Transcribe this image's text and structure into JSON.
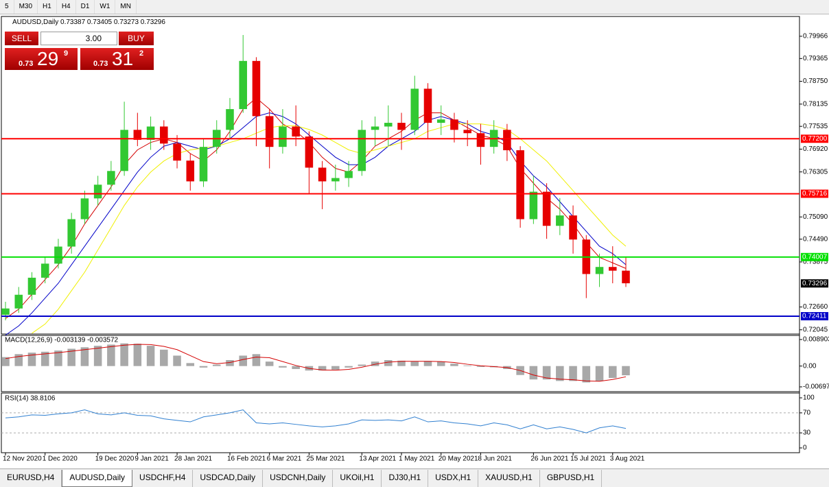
{
  "toolbar": {
    "timeframes": [
      "5",
      "M30",
      "H1",
      "H4",
      "D1",
      "W1",
      "MN"
    ]
  },
  "chart_header": "AUDUSD,Daily  0.73387 0.73405 0.73273 0.73296",
  "trade_panel": {
    "sell": "SELL",
    "buy": "BUY",
    "lot": "3.00",
    "sell_price": {
      "big": "0.73",
      "main": "29",
      "small": "9"
    },
    "buy_price": {
      "big": "0.73",
      "main": "31",
      "small": "2"
    }
  },
  "chart_data": [
    {
      "type": "candlestick",
      "up_color": "#32c832",
      "down_color": "#e60000",
      "ylim": [
        0.7193,
        0.805
      ],
      "yticks": [
        0.79966,
        0.79365,
        {
          "value": 0.7875,
          "label": "0.78750"
        },
        0.78135,
        0.77535,
        {
          "value": 0.7692,
          "label": "0.76920"
        },
        0.76305,
        {
          "value": 0.7509,
          "label": "0.75090"
        },
        {
          "value": 0.7449,
          "label": "0.74490"
        },
        0.73875,
        {
          "value": 0.7266,
          "label": "0.72660"
        },
        0.72045
      ],
      "categories": [
        "12 Nov 2020",
        null,
        null,
        "1 Dec 2020",
        null,
        null,
        null,
        "19 Dec 2020",
        null,
        null,
        "9 Jan 2021",
        null,
        null,
        "28 Jan 2021",
        null,
        null,
        null,
        "16 Feb 2021",
        null,
        null,
        "6 Mar 2021",
        null,
        null,
        "25 Mar 2021",
        null,
        null,
        null,
        "13 Apr 2021",
        null,
        null,
        "1 May 2021",
        null,
        null,
        "20 May 2021",
        null,
        null,
        "8 Jun 2021",
        null,
        null,
        null,
        "26 Jun 2021",
        null,
        null,
        "15 Jul 2021",
        null,
        null,
        "3 Aug 2021",
        null
      ],
      "ohlc": [
        [
          0.7245,
          0.728,
          0.723,
          0.7262
        ],
        [
          0.7262,
          0.732,
          0.725,
          0.7299
        ],
        [
          0.7299,
          0.736,
          0.7285,
          0.7345
        ],
        [
          0.7345,
          0.74,
          0.733,
          0.7383
        ],
        [
          0.7383,
          0.745,
          0.737,
          0.7429
        ],
        [
          0.7429,
          0.752,
          0.741,
          0.7503
        ],
        [
          0.7503,
          0.758,
          0.749,
          0.7559
        ],
        [
          0.7559,
          0.762,
          0.754,
          0.7596
        ],
        [
          0.7596,
          0.766,
          0.758,
          0.7633
        ],
        [
          0.7633,
          0.782,
          0.762,
          0.7744
        ],
        [
          0.7744,
          0.779,
          0.77,
          0.7717
        ],
        [
          0.7717,
          0.778,
          0.769,
          0.7753
        ],
        [
          0.7753,
          0.777,
          0.769,
          0.7707
        ],
        [
          0.7707,
          0.773,
          0.764,
          0.7661
        ],
        [
          0.7661,
          0.768,
          0.758,
          0.7605
        ],
        [
          0.7605,
          0.772,
          0.759,
          0.7698
        ],
        [
          0.7698,
          0.777,
          0.768,
          0.7744
        ],
        [
          0.7744,
          0.783,
          0.772,
          0.78
        ],
        [
          0.78,
          0.8,
          0.779,
          0.793
        ],
        [
          0.793,
          0.794,
          0.77,
          0.7781
        ],
        [
          0.7781,
          0.78,
          0.764,
          0.7698
        ],
        [
          0.7698,
          0.78,
          0.768,
          0.7753
        ],
        [
          0.7753,
          0.781,
          0.77,
          0.7726
        ],
        [
          0.7726,
          0.774,
          0.757,
          0.7642
        ],
        [
          0.7642,
          0.766,
          0.753,
          0.7605
        ],
        [
          0.7605,
          0.765,
          0.758,
          0.7614
        ],
        [
          0.7614,
          0.766,
          0.759,
          0.7633
        ],
        [
          0.7633,
          0.777,
          0.762,
          0.7744
        ],
        [
          0.7744,
          0.778,
          0.77,
          0.7753
        ],
        [
          0.7753,
          0.781,
          0.77,
          0.7763
        ],
        [
          0.7763,
          0.779,
          0.769,
          0.7744
        ],
        [
          0.7744,
          0.789,
          0.773,
          0.7855
        ],
        [
          0.7855,
          0.787,
          0.772,
          0.7763
        ],
        [
          0.7763,
          0.781,
          0.773,
          0.7772
        ],
        [
          0.7772,
          0.779,
          0.771,
          0.7744
        ],
        [
          0.7744,
          0.777,
          0.77,
          0.7735
        ],
        [
          0.7735,
          0.776,
          0.765,
          0.7698
        ],
        [
          0.7698,
          0.777,
          0.768,
          0.7744
        ],
        [
          0.7744,
          0.776,
          0.766,
          0.7689
        ],
        [
          0.7689,
          0.77,
          0.748,
          0.7503
        ],
        [
          0.7503,
          0.762,
          0.749,
          0.7577
        ],
        [
          0.7577,
          0.76,
          0.745,
          0.7485
        ],
        [
          0.7485,
          0.756,
          0.746,
          0.7513
        ],
        [
          0.7513,
          0.754,
          0.741,
          0.7448
        ],
        [
          0.7448,
          0.746,
          0.729,
          0.7355
        ],
        [
          0.7355,
          0.741,
          0.732,
          0.7374
        ],
        [
          0.7374,
          0.743,
          0.733,
          0.7364
        ],
        [
          0.7364,
          0.74,
          0.732,
          0.733
        ]
      ],
      "moving_averages": [
        {
          "color": "#d40000",
          "values": [
            0.7235,
            0.726,
            0.73,
            0.734,
            0.738,
            0.743,
            0.749,
            0.754,
            0.759,
            0.765,
            0.769,
            0.771,
            0.772,
            0.771,
            0.768,
            0.766,
            0.769,
            0.774,
            0.78,
            0.783,
            0.78,
            0.776,
            0.774,
            0.771,
            0.767,
            0.764,
            0.763,
            0.766,
            0.77,
            0.772,
            0.774,
            0.777,
            0.779,
            0.779,
            0.777,
            0.775,
            0.773,
            0.772,
            0.77,
            0.764,
            0.76,
            0.756,
            0.753,
            0.749,
            0.744,
            0.74,
            0.7385,
            0.737
          ]
        },
        {
          "color": "#0000c8",
          "values": [
            0.719,
            0.7215,
            0.725,
            0.729,
            0.733,
            0.738,
            0.743,
            0.748,
            0.753,
            0.758,
            0.763,
            0.767,
            0.77,
            0.771,
            0.77,
            0.769,
            0.77,
            0.772,
            0.775,
            0.778,
            0.779,
            0.778,
            0.776,
            0.773,
            0.77,
            0.767,
            0.765,
            0.765,
            0.767,
            0.77,
            0.772,
            0.774,
            0.777,
            0.778,
            0.777,
            0.776,
            0.774,
            0.773,
            0.771,
            0.766,
            0.762,
            0.759,
            0.755,
            0.751,
            0.747,
            0.743,
            0.741,
            0.738
          ]
        },
        {
          "color": "#f0f000",
          "values": [
            null,
            null,
            0.7195,
            0.722,
            0.726,
            0.731,
            0.736,
            0.742,
            0.748,
            0.754,
            0.759,
            0.763,
            0.766,
            0.768,
            0.769,
            0.7695,
            0.77,
            0.771,
            0.772,
            0.7735,
            0.775,
            0.7755,
            0.7755,
            0.7745,
            0.773,
            0.771,
            0.769,
            0.768,
            0.769,
            0.77,
            0.771,
            0.772,
            0.774,
            0.775,
            0.776,
            0.776,
            0.776,
            0.7755,
            0.7745,
            0.772,
            0.769,
            0.766,
            0.762,
            0.758,
            0.754,
            0.75,
            0.746,
            0.743
          ]
        }
      ],
      "levels": [
        {
          "value": 0.772,
          "label": "0.77200",
          "color": "#ff0000"
        },
        {
          "value": 0.75716,
          "label": "0.75716",
          "color": "#ff0000"
        },
        {
          "value": 0.74007,
          "label": "0.74007",
          "color": "#00e000"
        },
        {
          "value": 0.72411,
          "label": "0.72411",
          "color": "#0000c8"
        }
      ],
      "last_price": 0.73296
    },
    {
      "type": "bar",
      "title": "MACD(12,26,9) -0.003139 -0.003572",
      "color": "#a8a8a8",
      "signal_color": "#d40000",
      "ylim": [
        -0.00859,
        0.01028
      ],
      "yticks": [
        0.008903,
        {
          "value": 0,
          "label": "0.00"
        },
        -0.006977
      ],
      "values": [
        0.003,
        0.004,
        0.0045,
        0.0048,
        0.0052,
        0.0058,
        0.0063,
        0.0068,
        0.0072,
        0.0076,
        0.0075,
        0.0068,
        0.0055,
        0.0035,
        0.001,
        -0.0005,
        0.0005,
        0.002,
        0.0035,
        0.004,
        0.0015,
        -0.0005,
        -0.001,
        -0.0015,
        -0.0015,
        -0.0012,
        -0.0005,
        0.0005,
        0.0015,
        0.002,
        0.0018,
        0.0015,
        0.0017,
        0.0015,
        0.0008,
        0.0002,
        -0.0003,
        -0.0004,
        -0.001,
        -0.003,
        -0.0045,
        -0.0045,
        -0.005,
        -0.005,
        -0.0055,
        -0.005,
        -0.004,
        -0.0031
      ],
      "signal": [
        0.0025,
        0.0032,
        0.0037,
        0.0041,
        0.0045,
        0.005,
        0.0055,
        0.006,
        0.0065,
        0.007,
        0.0073,
        0.0072,
        0.0066,
        0.0055,
        0.0035,
        0.0015,
        0.0008,
        0.0012,
        0.0022,
        0.003,
        0.0028,
        0.0015,
        0.0002,
        -0.0008,
        -0.0013,
        -0.0014,
        -0.0011,
        -0.0004,
        0.0006,
        0.0013,
        0.0016,
        0.0016,
        0.0016,
        0.0015,
        0.0012,
        0.0006,
        0.0001,
        -0.0002,
        -0.0005,
        -0.0015,
        -0.003,
        -0.004,
        -0.0044,
        -0.0046,
        -0.005,
        -0.0051,
        -0.0045,
        -0.0036
      ]
    },
    {
      "type": "line",
      "title": "RSI(14) 38.8106",
      "color": "#2f7fd0",
      "ylim": [
        -9.6,
        109.6
      ],
      "yticks": [
        100,
        70,
        30,
        0
      ],
      "levels": [
        70,
        30
      ],
      "values": [
        60,
        62,
        66,
        65,
        68,
        70,
        76,
        68,
        66,
        70,
        65,
        64,
        58,
        55,
        52,
        62,
        66,
        70,
        76,
        50,
        48,
        50,
        47,
        44,
        42,
        44,
        48,
        56,
        55,
        56,
        54,
        62,
        52,
        54,
        50,
        48,
        44,
        50,
        46,
        38,
        46,
        38,
        42,
        37,
        30,
        40,
        44,
        38.81
      ]
    }
  ],
  "tabs": {
    "items": [
      "EURUSD,H4",
      "AUDUSD,Daily",
      "USDCHF,H4",
      "USDCAD,Daily",
      "USDCNH,Daily",
      "UKOil,H1",
      "DJ30,H1",
      "USDX,H1",
      "XAUUSD,H1",
      "GBPUSD,H1"
    ],
    "active": 1
  }
}
